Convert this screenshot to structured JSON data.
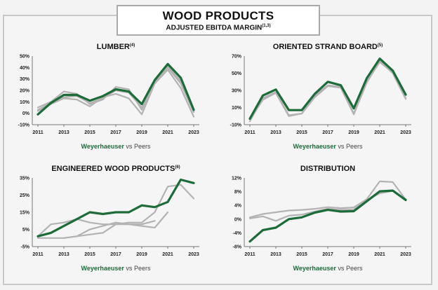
{
  "header": {
    "title": "WOOD PRODUCTS",
    "subtitle": "ADJUSTED EBITDA MARGIN",
    "subtitle_note": "(1,3)"
  },
  "colors": {
    "weyerhaeuser": "#1e6b3a",
    "peers": "#b3b3b3",
    "axis": "#777777"
  },
  "chart_data": [
    {
      "type": "line",
      "title": "LUMBER",
      "title_note": "(4)",
      "ylim": [
        -10,
        50
      ],
      "yticks": [
        "-10%",
        "0%",
        "10%",
        "20%",
        "30%",
        "40%",
        "50%"
      ],
      "yticks_values": [
        -10,
        0,
        10,
        20,
        30,
        40,
        50
      ],
      "xtick_labels": [
        "2011",
        "2013",
        "2015",
        "2017",
        "2019",
        "2021",
        "2023"
      ],
      "x": [
        2011,
        2012,
        2013,
        2014,
        2015,
        2016,
        2017,
        2018,
        2019,
        2020,
        2021,
        2022,
        2023
      ],
      "legend": {
        "company": "Weyerhaeuser",
        "connector": "vs",
        "peers": "Peers"
      },
      "series": [
        {
          "role": "weyerhaeuser",
          "values": [
            -1,
            9,
            16,
            16,
            11,
            15,
            21,
            19,
            8,
            29,
            43,
            31,
            3
          ]
        },
        {
          "role": "peer",
          "values": [
            5,
            10,
            19,
            17,
            8,
            12,
            23,
            21,
            3,
            27,
            40,
            26,
            1
          ]
        },
        {
          "role": "peer",
          "values": [
            2,
            8,
            13,
            12,
            6,
            14,
            17,
            13,
            -1,
            26,
            38,
            22,
            -3
          ]
        },
        {
          "role": "peer",
          "values": [
            3,
            9,
            14,
            15,
            9,
            13,
            20,
            18,
            5,
            28,
            41,
            28,
            2
          ]
        }
      ]
    },
    {
      "type": "line",
      "title": "ORIENTED STRAND BOARD",
      "title_note": "(5)",
      "ylim": [
        -10,
        70
      ],
      "yticks": [
        "-10%",
        "10%",
        "30%",
        "50%",
        "70%"
      ],
      "yticks_values": [
        -10,
        10,
        30,
        50,
        70
      ],
      "xtick_labels": [
        "2011",
        "2013",
        "2015",
        "2017",
        "2019",
        "2021",
        "2023"
      ],
      "x": [
        2011,
        2012,
        2013,
        2014,
        2015,
        2016,
        2017,
        2018,
        2019,
        2020,
        2021,
        2022,
        2023
      ],
      "legend": {
        "company": "Weyerhaeuser",
        "connector": "vs",
        "peers": "Peers"
      },
      "series": [
        {
          "role": "weyerhaeuser",
          "values": [
            -3,
            24,
            31,
            7,
            7,
            26,
            40,
            36,
            9,
            44,
            67,
            53,
            25
          ]
        },
        {
          "role": "peer",
          "values": [
            -6,
            21,
            28,
            1,
            3,
            24,
            36,
            34,
            3,
            40,
            63,
            51,
            21
          ]
        },
        {
          "role": "peer",
          "values": [
            -4,
            19,
            27,
            0,
            3,
            22,
            35,
            33,
            2,
            39,
            64,
            50,
            20
          ]
        }
      ]
    },
    {
      "type": "line",
      "title": "ENGINEERED WOOD PRODUCTS",
      "title_note": "(6)",
      "ylim": [
        -5,
        35
      ],
      "yticks": [
        "-5%",
        "5%",
        "15%",
        "25%",
        "35%"
      ],
      "yticks_values": [
        -5,
        5,
        15,
        25,
        35
      ],
      "xtick_labels": [
        "2011",
        "2013",
        "2015",
        "2017",
        "2019",
        "2021",
        "2023"
      ],
      "x": [
        2011,
        2012,
        2013,
        2014,
        2015,
        2016,
        2017,
        2018,
        2019,
        2020,
        2021,
        2022,
        2023
      ],
      "legend": {
        "company": "Weyerhaeuser",
        "connector": "vs",
        "peers": "Peers"
      },
      "series": [
        {
          "role": "weyerhaeuser",
          "values": [
            1,
            3,
            7,
            11,
            15,
            14,
            15,
            15,
            19,
            18,
            21,
            34,
            32
          ]
        },
        {
          "role": "peer",
          "values": [
            1,
            8,
            9,
            11,
            9,
            8,
            8,
            9,
            9,
            15,
            30,
            31,
            23
          ]
        },
        {
          "role": "peer",
          "values": [
            0,
            0,
            0,
            1,
            2,
            3,
            8,
            8,
            7,
            6,
            15,
            null,
            null
          ]
        },
        {
          "role": "peer",
          "values": [
            null,
            null,
            0,
            1,
            5,
            7,
            9,
            8,
            8,
            10,
            null,
            null,
            null
          ]
        }
      ]
    },
    {
      "type": "line",
      "title": "DISTRIBUTION",
      "title_note": "",
      "ylim": [
        -8,
        12
      ],
      "yticks": [
        "-8%",
        "-4%",
        "0%",
        "4%",
        "8%",
        "12%"
      ],
      "yticks_values": [
        -8,
        -4,
        0,
        4,
        8,
        12
      ],
      "xtick_labels": [
        "2011",
        "2013",
        "2015",
        "2017",
        "2019",
        "2021",
        "2023"
      ],
      "x": [
        2011,
        2012,
        2013,
        2014,
        2015,
        2016,
        2017,
        2018,
        2019,
        2020,
        2021,
        2022,
        2023
      ],
      "legend": {
        "company": "Weyerhaeuser",
        "connector": "vs",
        "peers": "Peers"
      },
      "series": [
        {
          "role": "weyerhaeuser",
          "values": [
            -6.5,
            -3.2,
            -2.5,
            0,
            0.5,
            1.9,
            2.7,
            2.2,
            2.3,
            5.2,
            8.1,
            8.3,
            5.6
          ]
        },
        {
          "role": "peer",
          "values": [
            0.5,
            1.5,
            2,
            2.5,
            2.7,
            3,
            3.5,
            3.2,
            3.4,
            5.8,
            11,
            10.8,
            5.7
          ]
        },
        {
          "role": "peer",
          "values": [
            0.2,
            0.8,
            -0.5,
            1,
            1.3,
            2.2,
            3,
            2.7,
            2.8,
            5.5,
            7.5,
            8.2,
            5.4
          ]
        }
      ]
    }
  ]
}
